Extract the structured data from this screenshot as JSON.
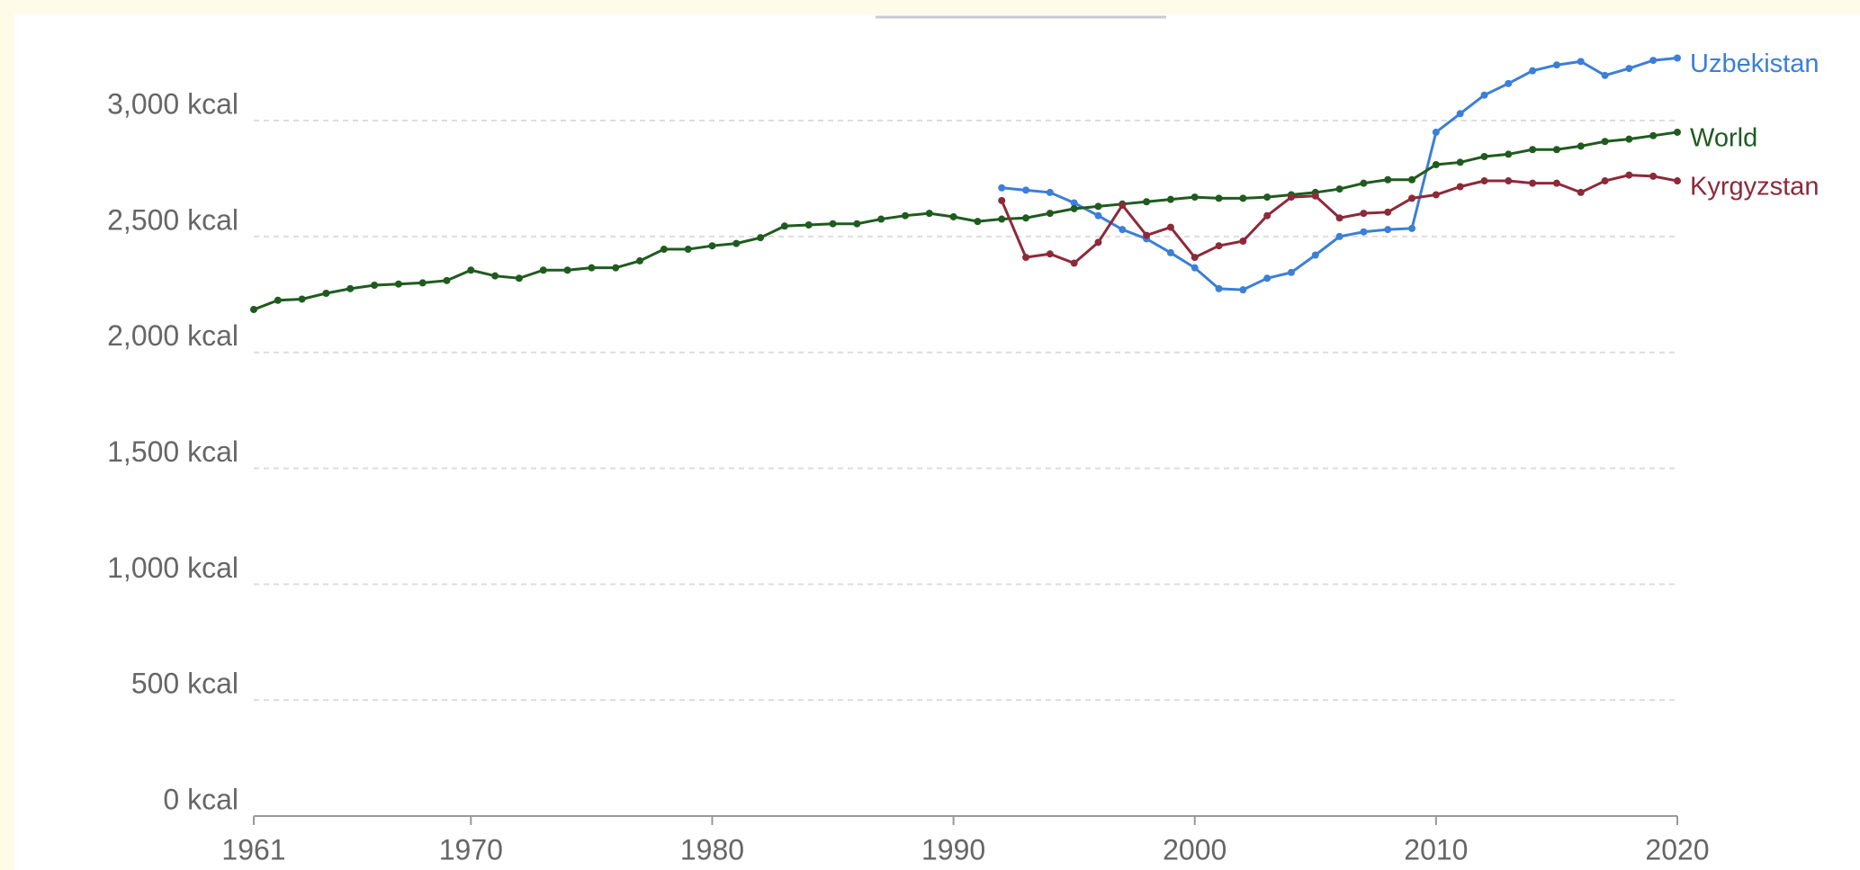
{
  "chart_data": {
    "type": "line",
    "x": [
      1961,
      1962,
      1963,
      1964,
      1965,
      1966,
      1967,
      1968,
      1969,
      1970,
      1971,
      1972,
      1973,
      1974,
      1975,
      1976,
      1977,
      1978,
      1979,
      1980,
      1981,
      1982,
      1983,
      1984,
      1985,
      1986,
      1987,
      1988,
      1989,
      1990,
      1991,
      1992,
      1993,
      1994,
      1995,
      1996,
      1997,
      1998,
      1999,
      2000,
      2001,
      2002,
      2003,
      2004,
      2005,
      2006,
      2007,
      2008,
      2009,
      2010,
      2011,
      2012,
      2013,
      2014,
      2015,
      2016,
      2017,
      2018,
      2019,
      2020
    ],
    "series": [
      {
        "name": "Uzbekistan",
        "color": "#3b7fd6",
        "values": [
          null,
          null,
          null,
          null,
          null,
          null,
          null,
          null,
          null,
          null,
          null,
          null,
          null,
          null,
          null,
          null,
          null,
          null,
          null,
          null,
          null,
          null,
          null,
          null,
          null,
          null,
          null,
          null,
          null,
          null,
          null,
          2710,
          2700,
          2690,
          2645,
          2590,
          2530,
          2490,
          2430,
          2365,
          2275,
          2270,
          2320,
          2345,
          2420,
          2500,
          2520,
          2530,
          2535,
          2950,
          3030,
          3110,
          3160,
          3215,
          3240,
          3255,
          3195,
          3225,
          3260,
          3270
        ]
      },
      {
        "name": "World",
        "color": "#1f5b1f",
        "values": [
          2185,
          2225,
          2230,
          2255,
          2275,
          2290,
          2295,
          2300,
          2310,
          2355,
          2330,
          2320,
          2355,
          2355,
          2365,
          2365,
          2395,
          2445,
          2445,
          2460,
          2470,
          2495,
          2545,
          2550,
          2555,
          2555,
          2575,
          2590,
          2600,
          2585,
          2565,
          2575,
          2580,
          2600,
          2620,
          2630,
          2640,
          2650,
          2660,
          2670,
          2665,
          2665,
          2670,
          2680,
          2690,
          2705,
          2730,
          2745,
          2745,
          2810,
          2820,
          2845,
          2855,
          2875,
          2875,
          2890,
          2910,
          2920,
          2935,
          2950
        ]
      },
      {
        "name": "Kyrgyzstan",
        "color": "#8c2a3a",
        "values": [
          null,
          null,
          null,
          null,
          null,
          null,
          null,
          null,
          null,
          null,
          null,
          null,
          null,
          null,
          null,
          null,
          null,
          null,
          null,
          null,
          null,
          null,
          null,
          null,
          null,
          null,
          null,
          null,
          null,
          null,
          null,
          2655,
          2410,
          2425,
          2385,
          2475,
          2635,
          2505,
          2540,
          2410,
          2460,
          2480,
          2590,
          2670,
          2675,
          2580,
          2600,
          2605,
          2665,
          2680,
          2715,
          2740,
          2740,
          2730,
          2730,
          2690,
          2740,
          2765,
          2760,
          2740
        ]
      }
    ],
    "xlim": [
      1961,
      2020
    ],
    "xticks": [
      1961,
      1970,
      1980,
      1990,
      2000,
      2010,
      2020
    ],
    "ylim": [
      0,
      3400
    ],
    "yticks": [
      {
        "value": 0,
        "label": "0 kcal"
      },
      {
        "value": 500,
        "label": "500 kcal"
      },
      {
        "value": 1000,
        "label": "1,000 kcal"
      },
      {
        "value": 1500,
        "label": "1,500 kcal"
      },
      {
        "value": 2000,
        "label": "2,000 kcal"
      },
      {
        "value": 2500,
        "label": "2,500 kcal"
      },
      {
        "value": 3000,
        "label": "3,000 kcal"
      }
    ],
    "grid": true
  }
}
